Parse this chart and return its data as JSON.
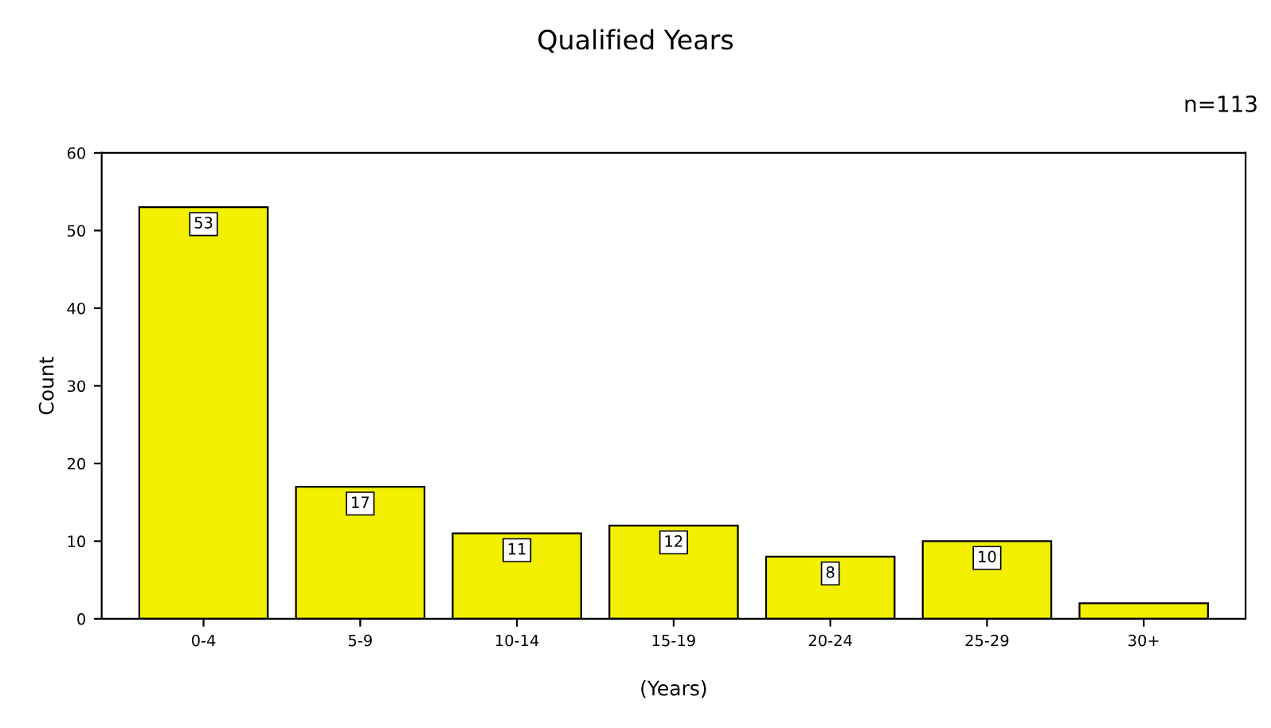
{
  "chart_data": {
    "type": "bar",
    "title": "Qualified Years",
    "xlabel": "(Years)",
    "ylabel": "Count",
    "annotations": [
      "n=113"
    ],
    "categories": [
      "0-4",
      "5-9",
      "10-14",
      "15-19",
      "20-24",
      "25-29",
      "30+"
    ],
    "values": [
      53,
      17,
      11,
      12,
      8,
      10,
      2
    ],
    "value_labels": [
      "53",
      "17",
      "11",
      "12",
      "8",
      "10",
      null
    ],
    "color": "#f2ef00",
    "ylim": [
      0,
      60
    ],
    "yticks": [
      0,
      10,
      20,
      30,
      40,
      50,
      60
    ],
    "grid": false,
    "legend": false
  }
}
